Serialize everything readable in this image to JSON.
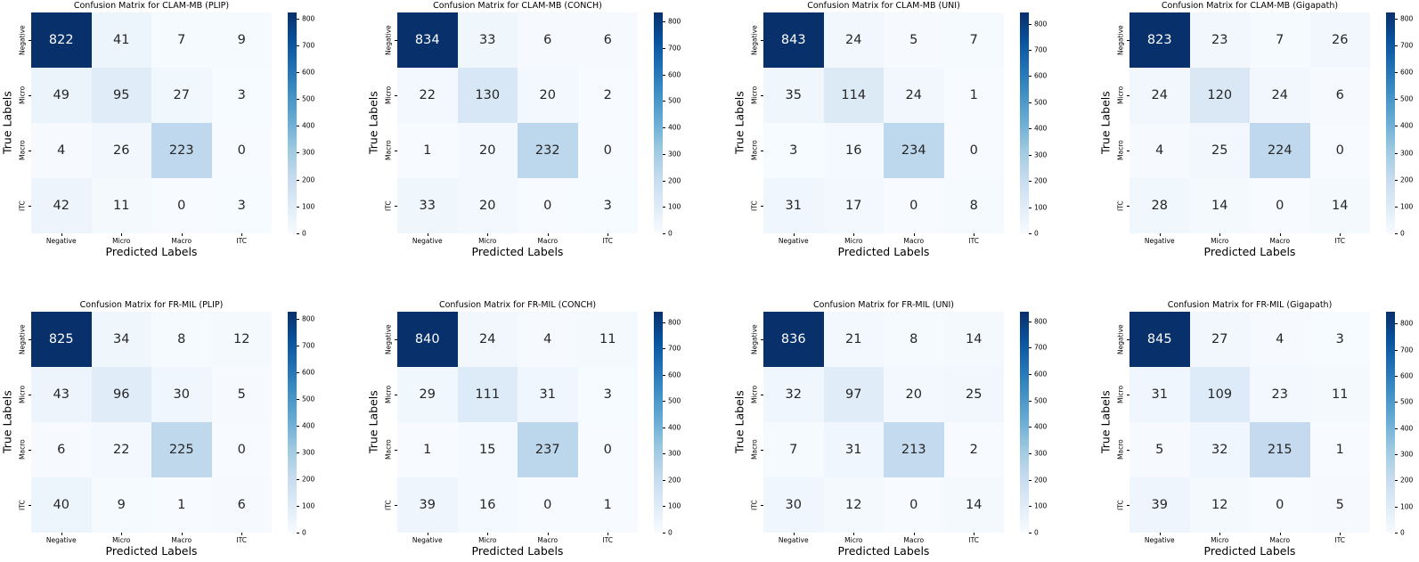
{
  "figure": {
    "background": "#ffffff",
    "colors": {
      "cmap_name": "Blues",
      "cmap_low": "#f7fbff",
      "cmap_high": "#08306b",
      "annot_dark": "#262626",
      "annot_light": "#ffffff",
      "text": "#000000"
    }
  },
  "chart_data": [
    {
      "type": "heatmap",
      "title": "Confusion Matrix for CLAM-MB (PLIP)",
      "xlabel": "Predicted Labels",
      "ylabel": "True Labels",
      "row_labels": [
        "Negative",
        "Micro",
        "Macro",
        "ITC"
      ],
      "col_labels": [
        "Negative",
        "Micro",
        "Macro",
        "ITC"
      ],
      "values": [
        [
          822,
          41,
          7,
          9
        ],
        [
          49,
          95,
          27,
          3
        ],
        [
          4,
          26,
          223,
          0
        ],
        [
          42,
          11,
          0,
          3
        ]
      ],
      "colormap": "Blues",
      "colorbar_ticks": [
        0,
        100,
        200,
        300,
        400,
        500,
        600,
        700,
        800
      ]
    },
    {
      "type": "heatmap",
      "title": "Confusion Matrix for CLAM-MB (CONCH)",
      "xlabel": "Predicted Labels",
      "ylabel": "True Labels",
      "row_labels": [
        "Negative",
        "Micro",
        "Macro",
        "ITC"
      ],
      "col_labels": [
        "Negative",
        "Micro",
        "Macro",
        "ITC"
      ],
      "values": [
        [
          834,
          33,
          6,
          6
        ],
        [
          22,
          130,
          20,
          2
        ],
        [
          1,
          20,
          232,
          0
        ],
        [
          33,
          20,
          0,
          3
        ]
      ],
      "colormap": "Blues",
      "colorbar_ticks": [
        0,
        100,
        200,
        300,
        400,
        500,
        600,
        700,
        800
      ]
    },
    {
      "type": "heatmap",
      "title": "Confusion Matrix for CLAM-MB (UNI)",
      "xlabel": "Predicted Labels",
      "ylabel": "True Labels",
      "row_labels": [
        "Negative",
        "Micro",
        "Macro",
        "ITC"
      ],
      "col_labels": [
        "Negative",
        "Micro",
        "Macro",
        "ITC"
      ],
      "values": [
        [
          843,
          24,
          5,
          7
        ],
        [
          35,
          114,
          24,
          1
        ],
        [
          3,
          16,
          234,
          0
        ],
        [
          31,
          17,
          0,
          8
        ]
      ],
      "colormap": "Blues",
      "colorbar_ticks": [
        0,
        100,
        200,
        300,
        400,
        500,
        600,
        700,
        800
      ]
    },
    {
      "type": "heatmap",
      "title": "Confusion Matrix for CLAM-MB (Gigapath)",
      "xlabel": "Predicted Labels",
      "ylabel": "True Labels",
      "row_labels": [
        "Negative",
        "Micro",
        "Macro",
        "ITC"
      ],
      "col_labels": [
        "Negative",
        "Micro",
        "Macro",
        "ITC"
      ],
      "values": [
        [
          823,
          23,
          7,
          26
        ],
        [
          24,
          120,
          24,
          6
        ],
        [
          4,
          25,
          224,
          0
        ],
        [
          28,
          14,
          0,
          14
        ]
      ],
      "colormap": "Blues",
      "colorbar_ticks": [
        0,
        100,
        200,
        300,
        400,
        500,
        600,
        700,
        800
      ]
    },
    {
      "type": "heatmap",
      "title": "Confusion Matrix for FR-MIL (PLIP)",
      "xlabel": "Predicted Labels",
      "ylabel": "True Labels",
      "row_labels": [
        "Negative",
        "Micro",
        "Macro",
        "ITC"
      ],
      "col_labels": [
        "Negative",
        "Micro",
        "Macro",
        "ITC"
      ],
      "values": [
        [
          825,
          34,
          8,
          12
        ],
        [
          43,
          96,
          30,
          5
        ],
        [
          6,
          22,
          225,
          0
        ],
        [
          40,
          9,
          1,
          6
        ]
      ],
      "colormap": "Blues",
      "colorbar_ticks": [
        0,
        100,
        200,
        300,
        400,
        500,
        600,
        700,
        800
      ]
    },
    {
      "type": "heatmap",
      "title": "Confusion Matrix for FR-MIL (CONCH)",
      "xlabel": "Predicted Labels",
      "ylabel": "True Labels",
      "row_labels": [
        "Negative",
        "Micro",
        "Macro",
        "ITC"
      ],
      "col_labels": [
        "Negative",
        "Micro",
        "Macro",
        "ITC"
      ],
      "values": [
        [
          840,
          24,
          4,
          11
        ],
        [
          29,
          111,
          31,
          3
        ],
        [
          1,
          15,
          237,
          0
        ],
        [
          39,
          16,
          0,
          1
        ]
      ],
      "colormap": "Blues",
      "colorbar_ticks": [
        0,
        100,
        200,
        300,
        400,
        500,
        600,
        700,
        800
      ]
    },
    {
      "type": "heatmap",
      "title": "Confusion Matrix for FR-MIL (UNI)",
      "xlabel": "Predicted Labels",
      "ylabel": "True Labels",
      "row_labels": [
        "Negative",
        "Micro",
        "Macro",
        "ITC"
      ],
      "col_labels": [
        "Negative",
        "Micro",
        "Macro",
        "ITC"
      ],
      "values": [
        [
          836,
          21,
          8,
          14
        ],
        [
          32,
          97,
          20,
          25
        ],
        [
          7,
          31,
          213,
          2
        ],
        [
          30,
          12,
          0,
          14
        ]
      ],
      "colormap": "Blues",
      "colorbar_ticks": [
        0,
        100,
        200,
        300,
        400,
        500,
        600,
        700,
        800
      ]
    },
    {
      "type": "heatmap",
      "title": "Confusion Matrix for FR-MIL (Gigapath)",
      "xlabel": "Predicted Labels",
      "ylabel": "True Labels",
      "row_labels": [
        "Negative",
        "Micro",
        "Macro",
        "ITC"
      ],
      "col_labels": [
        "Negative",
        "Micro",
        "Macro",
        "ITC"
      ],
      "values": [
        [
          845,
          27,
          4,
          3
        ],
        [
          31,
          109,
          23,
          11
        ],
        [
          5,
          32,
          215,
          1
        ],
        [
          39,
          12,
          0,
          5
        ]
      ],
      "colormap": "Blues",
      "colorbar_ticks": [
        0,
        100,
        200,
        300,
        400,
        500,
        600,
        700,
        800
      ]
    }
  ]
}
